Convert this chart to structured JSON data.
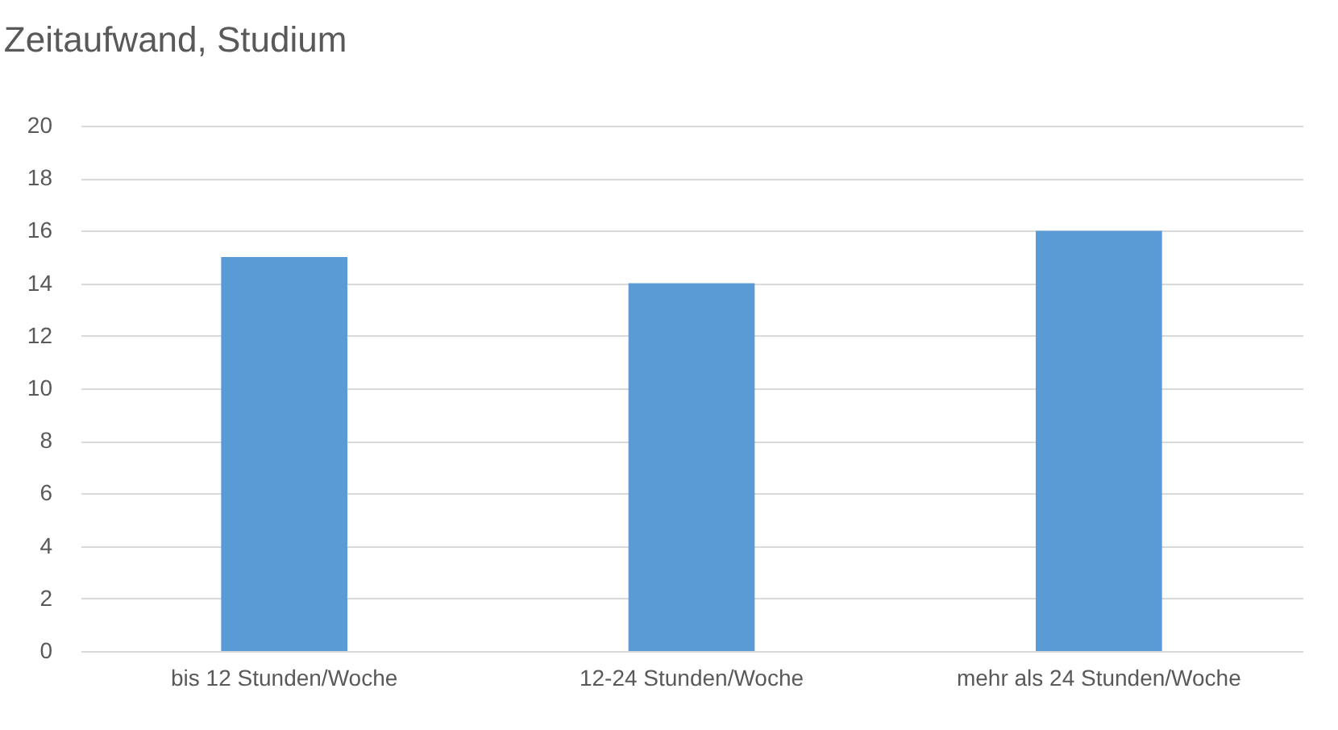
{
  "chart_data": {
    "type": "bar",
    "title": "Zeitaufwand, Studium",
    "categories": [
      "bis 12 Stunden/Woche",
      "12-24 Stunden/Woche",
      "mehr als 24 Stunden/Woche"
    ],
    "values": [
      15,
      14,
      16
    ],
    "color": "#5b9bd5",
    "ylim": [
      0,
      20
    ],
    "yticks": [
      0,
      2,
      4,
      6,
      8,
      10,
      12,
      14,
      16,
      18,
      20
    ],
    "grid": "y"
  }
}
